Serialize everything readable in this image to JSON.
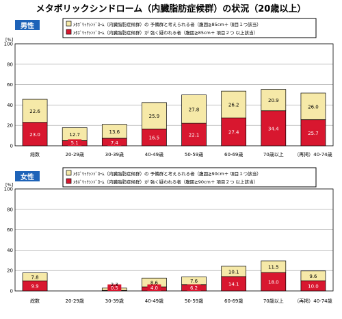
{
  "title": "メタボリックシンドローム（内臓脂肪症候群）の状況（20歳以上）",
  "colors": {
    "reserve": "#f6e9a8",
    "strong": "#d8172f",
    "badge": "#1e63b8",
    "grid": "#999999"
  },
  "chart_data": [
    {
      "type": "bar",
      "stacked": true,
      "badge": "男性",
      "unit": "[%]",
      "ylim": [
        0,
        100
      ],
      "yticks": [
        "0",
        "20",
        "40",
        "60",
        "80",
        "100"
      ],
      "legend": [
        "ﾒﾀﾎﾞﾘｯｸｼﾝﾄﾞﾛｰﾑ（内臓脂肪症候群）の 予備群と考えられる者（腹囲≧85cm＋ 項目１つ該当）",
        "ﾒﾀﾎﾞﾘｯｸｼﾝﾄﾞﾛｰﾑ（内臓脂肪症候群）が 強く疑われる者（腹囲≧85cm＋ 項目２つ 以上該当）"
      ],
      "categories": [
        "総数",
        "20-29歳",
        "30-39歳",
        "40-49歳",
        "50-59歳",
        "60-69歳",
        "70歳以上",
        "（再掲）40-74歳"
      ],
      "series": [
        {
          "values": [
            23.0,
            5.1,
            7.4,
            16.5,
            22.1,
            27.4,
            34.4,
            25.7
          ],
          "labels": [
            "23.0",
            "5.1",
            "7.4",
            "16.5",
            "22.1",
            "27.4",
            "34.4",
            "25.7"
          ]
        },
        {
          "values": [
            22.6,
            12.7,
            13.6,
            25.9,
            27.8,
            26.2,
            20.9,
            26.0
          ],
          "labels": [
            "22.6",
            "12.7",
            "13.6",
            "25.9",
            "27.8",
            "26.2",
            "20.9",
            "26.0"
          ]
        }
      ]
    },
    {
      "type": "bar",
      "stacked": true,
      "badge": "女性",
      "unit": "[%]",
      "ylim": [
        0,
        100
      ],
      "yticks": [
        "0",
        "20",
        "40",
        "60",
        "80",
        "100"
      ],
      "legend": [
        "ﾒﾀﾎﾞﾘｯｸｼﾝﾄﾞﾛｰﾑ（内臓脂肪症候群）の 予備群と考えられる者（腹囲≧90cm＋ 項目１つ該当）",
        "ﾒﾀﾎﾞﾘｯｸｼﾝﾄﾞﾛｰﾑ（内臓脂肪症候群）が 強く疑われる者（腹囲≧90cm＋ 項目２つ 以上該当）"
      ],
      "categories": [
        "総数",
        "20-29歳",
        "30-39歳",
        "40-49歳",
        "50-59歳",
        "60-69歳",
        "70歳以上",
        "（再掲）40-74歳"
      ],
      "series": [
        {
          "values": [
            9.9,
            0,
            0.5,
            4.0,
            6.2,
            14.1,
            18.0,
            10.0
          ],
          "labels": [
            "9.9",
            "",
            "0.5",
            "4.0",
            "6.2",
            "14.1",
            "18.0",
            "10.0"
          ]
        },
        {
          "values": [
            7.8,
            0,
            2.3,
            8.6,
            7.6,
            10.1,
            11.5,
            9.6
          ],
          "labels": [
            "7.8",
            "",
            "2.3",
            "8.6",
            "7.6",
            "10.1",
            "11.5",
            "9.6"
          ]
        }
      ]
    }
  ]
}
